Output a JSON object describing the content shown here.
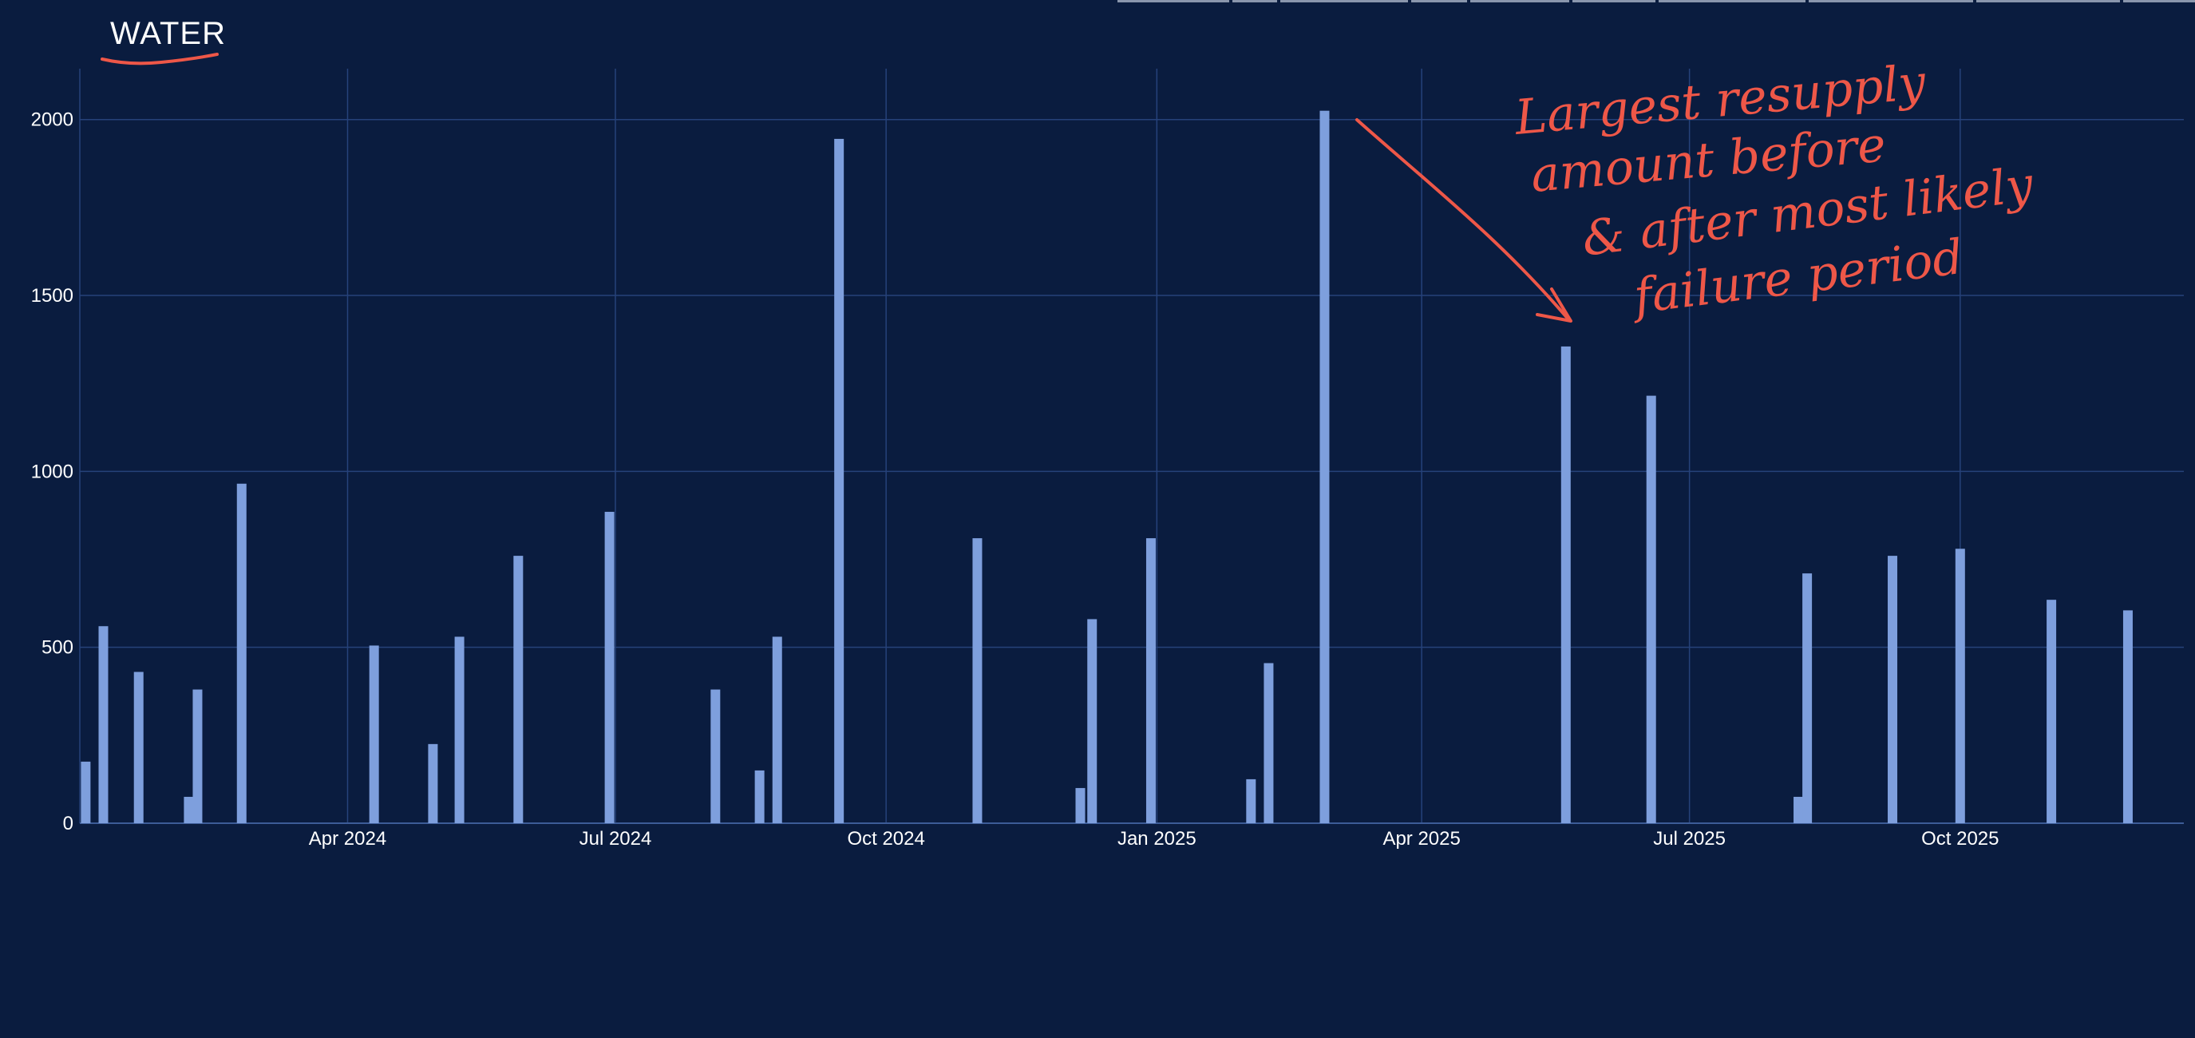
{
  "header": {
    "title": "WATER"
  },
  "colors": {
    "background": "#0a1c3f",
    "grid": "#26427a",
    "bar": "#7e9fdd",
    "annotation": "#ee5748"
  },
  "chart_data": {
    "type": "bar",
    "title": "WATER",
    "xlabel": "",
    "ylabel": "",
    "ylim": [
      0,
      2140
    ],
    "xlim": [
      "2024-01-01",
      "2025-12-16"
    ],
    "grid": true,
    "yticks": [
      0,
      500,
      1000,
      1500,
      2000
    ],
    "xticks": [
      {
        "date": "2024-04-01",
        "label": "Apr 2024"
      },
      {
        "date": "2024-07-01",
        "label": "Jul 2024"
      },
      {
        "date": "2024-10-01",
        "label": "Oct 2024"
      },
      {
        "date": "2025-01-01",
        "label": "Jan 2025"
      },
      {
        "date": "2025-04-01",
        "label": "Apr 2025"
      },
      {
        "date": "2025-07-01",
        "label": "Jul 2025"
      },
      {
        "date": "2025-10-01",
        "label": "Oct 2025"
      }
    ],
    "points": [
      {
        "date": "2024-01-03",
        "value": 175
      },
      {
        "date": "2024-01-09",
        "value": 560
      },
      {
        "date": "2024-01-21",
        "value": 430
      },
      {
        "date": "2024-02-07",
        "value": 75
      },
      {
        "date": "2024-02-10",
        "value": 380
      },
      {
        "date": "2024-02-25",
        "value": 965
      },
      {
        "date": "2024-04-10",
        "value": 505
      },
      {
        "date": "2024-04-30",
        "value": 225
      },
      {
        "date": "2024-05-09",
        "value": 530
      },
      {
        "date": "2024-05-29",
        "value": 760
      },
      {
        "date": "2024-06-29",
        "value": 885
      },
      {
        "date": "2024-08-04",
        "value": 380
      },
      {
        "date": "2024-08-19",
        "value": 150
      },
      {
        "date": "2024-08-25",
        "value": 530
      },
      {
        "date": "2024-09-15",
        "value": 1945
      },
      {
        "date": "2024-11-01",
        "value": 810
      },
      {
        "date": "2024-12-06",
        "value": 100
      },
      {
        "date": "2024-12-10",
        "value": 580
      },
      {
        "date": "2024-12-30",
        "value": 810
      },
      {
        "date": "2025-02-02",
        "value": 125
      },
      {
        "date": "2025-02-08",
        "value": 455
      },
      {
        "date": "2025-02-27",
        "value": 2025
      },
      {
        "date": "2025-05-20",
        "value": 1355
      },
      {
        "date": "2025-06-18",
        "value": 1215
      },
      {
        "date": "2025-08-07",
        "value": 75
      },
      {
        "date": "2025-08-10",
        "value": 710
      },
      {
        "date": "2025-09-08",
        "value": 760
      },
      {
        "date": "2025-10-01",
        "value": 780
      },
      {
        "date": "2025-11-01",
        "value": 635
      },
      {
        "date": "2025-11-27",
        "value": 605
      }
    ],
    "annotation": {
      "lines": [
        "Largest resupply",
        "amount before",
        "& after most likely",
        "failure period"
      ]
    }
  }
}
